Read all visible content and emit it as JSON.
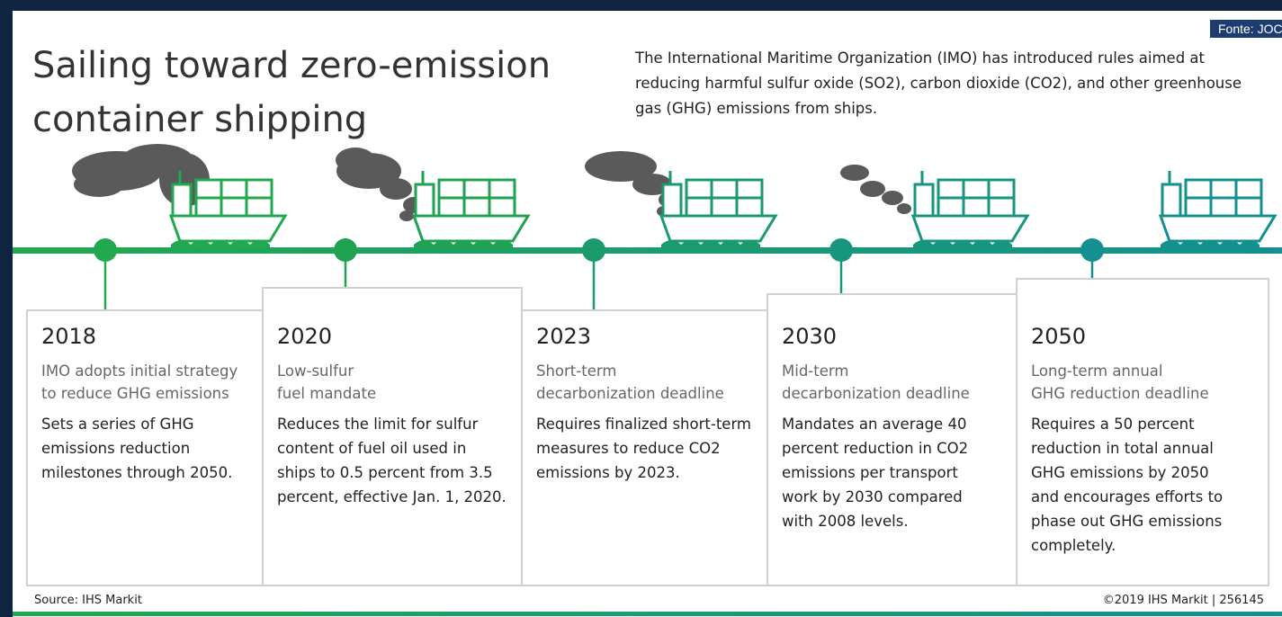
{
  "header": {
    "title_lines": [
      "Sailing toward zero-emission",
      "container shipping"
    ],
    "description_lines": [
      "The International Maritime Organization (IMO) has introduced rules aimed at",
      "reducing harmful sulfur oxide (SO2), carbon dioxide (CO2), and other greenhouse",
      "gas (GHG) emissions from ships."
    ],
    "credit": "Fonte: JOC"
  },
  "milestones": [
    {
      "year": "2018",
      "subtitle_lines": [
        "IMO adopts initial strategy",
        "to reduce GHG emissions"
      ],
      "body_lines": [
        "Sets a series of GHG",
        "emissions reduction",
        "milestones through 2050."
      ]
    },
    {
      "year": "2020",
      "subtitle_lines": [
        "Low-sulfur",
        "fuel mandate"
      ],
      "body_lines": [
        "Reduces the limit for sulfur",
        "content of fuel oil used in",
        "ships to 0.5 percent from 3.5",
        "percent, effective Jan. 1, 2020."
      ]
    },
    {
      "year": "2023",
      "subtitle_lines": [
        "Short-term",
        "decarbonization deadline"
      ],
      "body_lines": [
        "Requires finalized short-term",
        "measures to reduce CO2",
        "emissions by 2023."
      ]
    },
    {
      "year": "2030",
      "subtitle_lines": [
        "Mid-term",
        "decarbonization deadline"
      ],
      "body_lines": [
        "Mandates an average 40",
        "percent reduction in CO2",
        "emissions per transport",
        "work by 2030 compared",
        "with 2008 levels."
      ]
    },
    {
      "year": "2050",
      "subtitle_lines": [
        "Long-term annual",
        "GHG reduction deadline"
      ],
      "body_lines": [
        "Requires a 50 percent",
        "reduction in total annual",
        "GHG emissions by 2050",
        "and encourages efforts to",
        "phase out GHG emissions",
        "completely."
      ]
    }
  ],
  "footer": {
    "source": "Source: IHS Markit",
    "copyright": "©2019 IHS Markit | 256145"
  }
}
